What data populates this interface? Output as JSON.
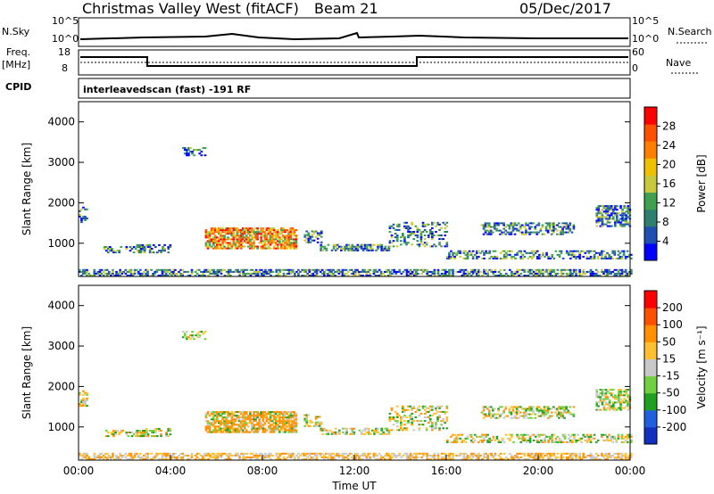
{
  "header": {
    "station": "Christmas Valley West (fitACF)",
    "beam": "Beam 21",
    "date": "05/Dec/2017"
  },
  "panels": {
    "nsky_label": "N.Sky",
    "nsky_ticks": [
      "10^5",
      "10^0"
    ],
    "nsearch_label": "N.Search",
    "nsearch_ticks": [
      "10^5",
      "10^0"
    ],
    "freq_label": "Freq.",
    "freq_unit": "[MHz]",
    "freq_ticks": [
      "18",
      "8"
    ],
    "nave_label": "Nave",
    "nave_ticks": [
      "60",
      "0"
    ],
    "cpid_label": "CPID",
    "cpid_value": "interleavedscan (fast) -191 RF"
  },
  "chart_data": [
    {
      "type": "heatmap",
      "name": "power",
      "ylabel": "Slant Range [km]",
      "y_ticks": [
        "4000",
        "3000",
        "2000",
        "1000"
      ],
      "ylim": [
        180,
        4500
      ],
      "colorbar_label": "Power [dB]",
      "colorbar_ticks": [
        "28",
        "24",
        "20",
        "16",
        "12",
        "8",
        "4"
      ],
      "colors": [
        "#0000ff",
        "#1f4fb0",
        "#2f7f6f",
        "#3fa050",
        "#c8c83c",
        "#f0c000",
        "#ff8000",
        "#ff5000",
        "#ff0000"
      ]
    },
    {
      "type": "heatmap",
      "name": "velocity",
      "ylabel": "Slant Range [km]",
      "y_ticks": [
        "4000",
        "3000",
        "2000",
        "1000"
      ],
      "ylim": [
        180,
        4500
      ],
      "xlabel": "Time UT",
      "x_ticks": [
        "00:00",
        "04:00",
        "08:00",
        "12:00",
        "16:00",
        "20:00",
        "00:00"
      ],
      "colorbar_label": "Velocity [m s⁻¹]",
      "colorbar_ticks": [
        "200",
        "100",
        "50",
        "15",
        "-15",
        "-50",
        "-100",
        "-200"
      ],
      "colors": [
        "#1030c0",
        "#2060e0",
        "#20a020",
        "#70d040",
        "#c8c8c8",
        "#ffc030",
        "#ff9000",
        "#ff5000",
        "#ff0000"
      ]
    }
  ]
}
